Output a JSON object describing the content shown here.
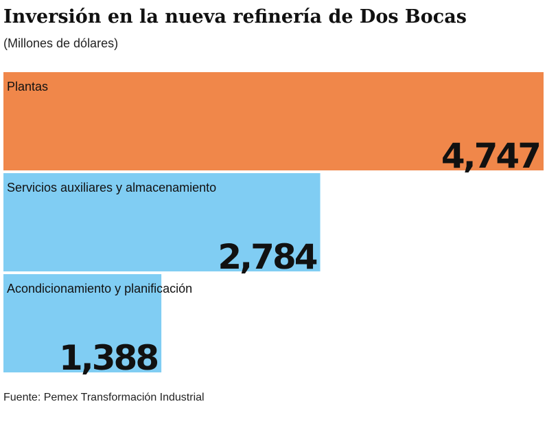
{
  "chart_data": {
    "type": "bar",
    "title": "Inversión en la nueva refinería de Dos Bocas",
    "subtitle": "(Millones de dólares)",
    "categories": [
      "Plantas",
      "Servicios auxiliares y almacenamiento",
      "Acondicionamiento y planificación"
    ],
    "values": [
      4747,
      2784,
      1388
    ],
    "value_labels": [
      "4,747",
      "2,784",
      "1,388"
    ],
    "colors": [
      "#f0874a",
      "#80cdf3",
      "#80cdf3"
    ],
    "source": "Fuente: Pemex Transformación Industrial"
  }
}
